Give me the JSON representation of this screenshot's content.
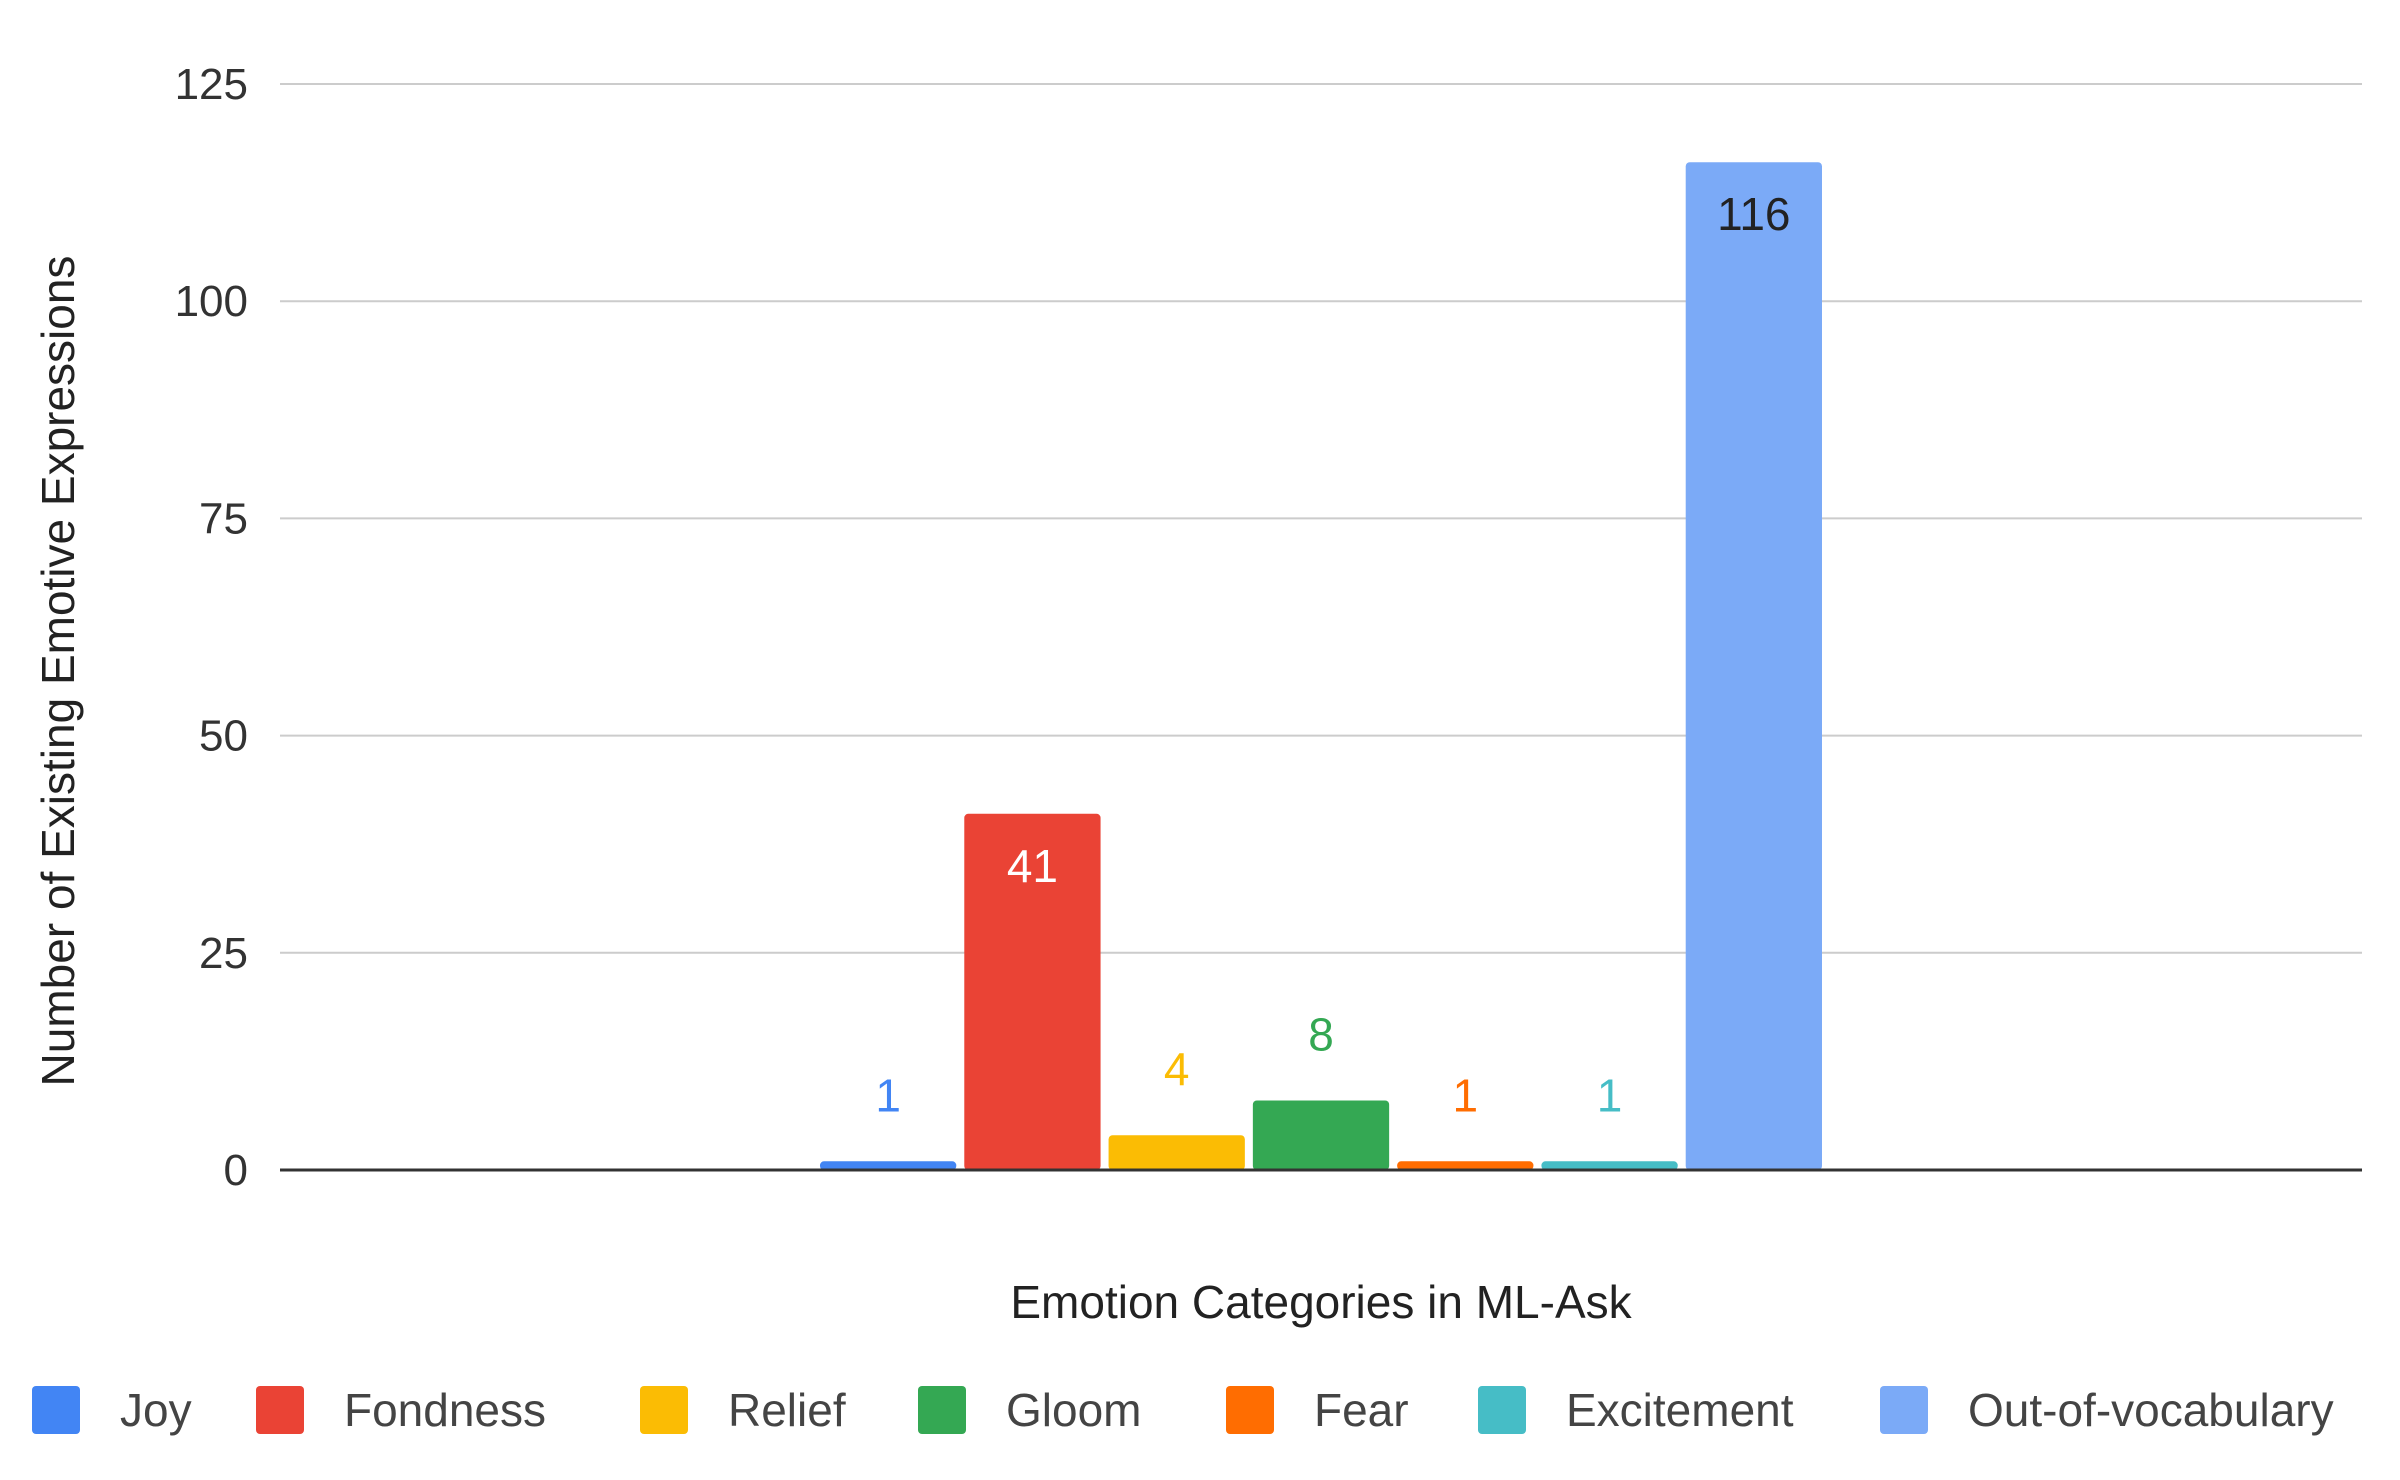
{
  "chart_data": {
    "type": "bar",
    "title": "",
    "xlabel": "Emotion Categories in ML-Ask",
    "ylabel": "Number of Existing Emotive Expressions",
    "ylim": [
      0,
      125
    ],
    "yticks": [
      "0",
      "25",
      "50",
      "75",
      "100",
      "125"
    ],
    "grid": true,
    "legend_position": "bottom",
    "series": [
      {
        "name": "Joy",
        "value": 1,
        "color": "#4285f4",
        "label": "1"
      },
      {
        "name": "Fondness",
        "value": 41,
        "color": "#ea4335",
        "label": "41"
      },
      {
        "name": "Relief",
        "value": 4,
        "color": "#fbbc04",
        "label": "4"
      },
      {
        "name": "Gloom",
        "value": 8,
        "color": "#34a853",
        "label": "8"
      },
      {
        "name": "Fear",
        "value": 1,
        "color": "#ff6d01",
        "label": "1"
      },
      {
        "name": "Excitement",
        "value": 1,
        "color": "#46bdc6",
        "label": "1"
      },
      {
        "name": "Out-of-vocabulary",
        "value": 116,
        "color": "#7baaf7",
        "label": "116"
      }
    ]
  }
}
